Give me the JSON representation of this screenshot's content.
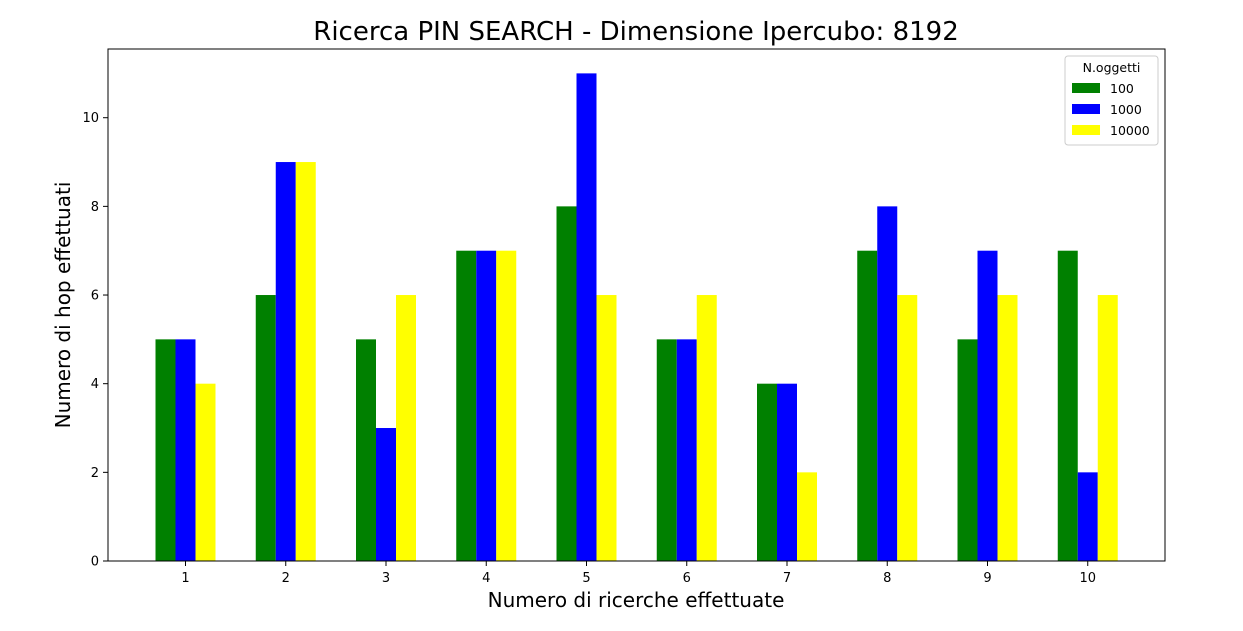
{
  "chart_data": {
    "type": "bar",
    "title": "Ricerca PIN SEARCH - Dimensione Ipercubo: 8192",
    "xlabel": "Numero di ricerche effettuate",
    "ylabel": "Numero di hop effettuati",
    "categories": [
      "1",
      "2",
      "3",
      "4",
      "5",
      "6",
      "7",
      "8",
      "9",
      "10"
    ],
    "y_ticks": [
      "0",
      "2",
      "4",
      "6",
      "8",
      "10"
    ],
    "ylim": [
      0,
      11.55
    ],
    "grid": false,
    "legend": {
      "title": "N.oggetti",
      "placement": "top-right"
    },
    "series": [
      {
        "name": "100",
        "color": "#008000",
        "values": [
          5,
          6,
          5,
          7,
          8,
          5,
          4,
          7,
          5,
          7
        ]
      },
      {
        "name": "1000",
        "color": "#0000ff",
        "values": [
          5,
          9,
          3,
          7,
          11,
          5,
          4,
          8,
          7,
          2
        ]
      },
      {
        "name": "10000",
        "color": "#ffff00",
        "values": [
          4,
          9,
          6,
          7,
          6,
          6,
          2,
          6,
          6,
          6
        ]
      }
    ]
  }
}
